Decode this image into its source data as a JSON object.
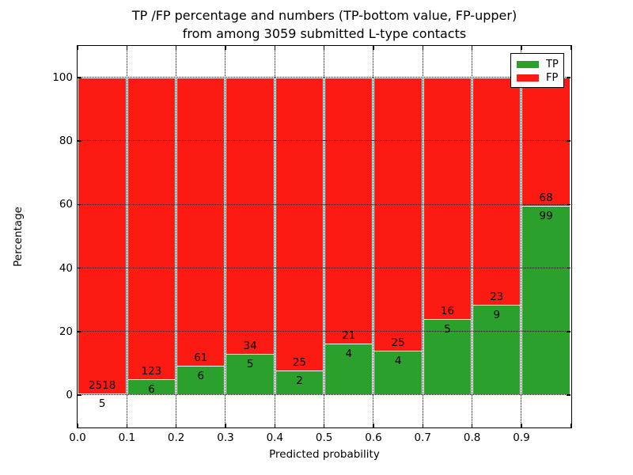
{
  "figure": {
    "title_line1": "TP /FP percentage and numbers (TP-bottom value, FP-upper)",
    "title_line2": "from among 3059 submitted L-type contacts"
  },
  "chart_data": {
    "type": "bar",
    "stacked": true,
    "normalized": "each bin stacked to 100%, green TP share on bottom, red FP share on top",
    "title": "TP /FP percentage and numbers (TP-bottom value, FP-upper) from among 3059 submitted L-type contacts",
    "xlabel": "Predicted probability",
    "ylabel": "Percentage",
    "xlim": [
      0.0,
      1.0
    ],
    "ylim": [
      -10,
      110
    ],
    "x_tick_labels": [
      "0.0",
      "0.1",
      "0.2",
      "0.3",
      "0.4",
      "0.5",
      "0.6",
      "0.7",
      "0.8",
      "0.9"
    ],
    "y_tick_values": [
      0,
      20,
      40,
      60,
      80,
      100
    ],
    "grid": "dotted",
    "legend_position": "upper-right",
    "categories": [
      "0.0-0.1",
      "0.1-0.2",
      "0.2-0.3",
      "0.3-0.4",
      "0.4-0.5",
      "0.5-0.6",
      "0.6-0.7",
      "0.7-0.8",
      "0.8-0.9",
      "0.9-1.0"
    ],
    "series": [
      {
        "name": "TP",
        "color": "#2ca02c",
        "values": [
          5,
          6,
          6,
          5,
          2,
          4,
          4,
          5,
          9,
          99
        ]
      },
      {
        "name": "FP",
        "color": "#fb1b12",
        "values": [
          2518,
          123,
          61,
          34,
          25,
          21,
          25,
          16,
          23,
          68
        ]
      }
    ],
    "total_contacts": 3059
  }
}
